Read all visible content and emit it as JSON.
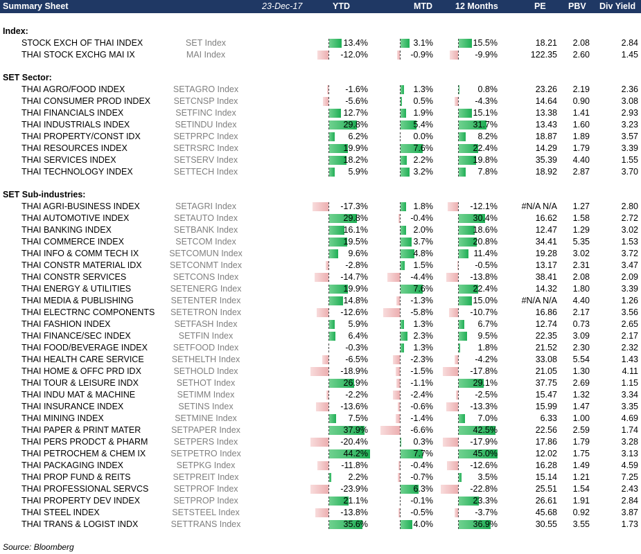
{
  "header": {
    "title": "Summary Sheet",
    "date": "23-Dec-17",
    "col_ytd": "YTD",
    "col_mtd": "MTD",
    "col_12m": "12 Months",
    "col_pe": "PE",
    "col_pbv": "PBV",
    "col_div": "Div Yield"
  },
  "colors": {
    "header_bg": "#1f3864",
    "positive_bar": "#2fb862",
    "negative_bar": "#ecaeb0"
  },
  "sections": [
    {
      "title": "Index:",
      "rows": [
        {
          "name": "STOCK EXCH OF THAI INDEX",
          "ticker": "SET Index",
          "ytd": "13.4%",
          "mtd": "3.1%",
          "m12": "15.5%",
          "pe": "18.21",
          "pbv": "2.08",
          "div": "2.84"
        },
        {
          "name": "THAI STOCK EXCHG MAI IX",
          "ticker": "MAI Index",
          "ytd": "-12.0%",
          "mtd": "-0.9%",
          "m12": "-9.9%",
          "pe": "122.35",
          "pbv": "2.60",
          "div": "1.45"
        }
      ]
    },
    {
      "title": "SET Sector:",
      "rows": [
        {
          "name": "THAI AGRO/FOOD INDEX",
          "ticker": "SETAGRO Index",
          "ytd": "-1.6%",
          "mtd": "1.3%",
          "m12": "0.8%",
          "pe": "23.26",
          "pbv": "2.19",
          "div": "2.36"
        },
        {
          "name": "THAI CONSUMER PROD INDEX",
          "ticker": "SETCNSP Index",
          "ytd": "-5.6%",
          "mtd": "0.5%",
          "m12": "-4.3%",
          "pe": "14.64",
          "pbv": "0.90",
          "div": "3.08"
        },
        {
          "name": "THAI FINANCIALS INDEX",
          "ticker": "SETFINC Index",
          "ytd": "12.7%",
          "mtd": "1.9%",
          "m12": "15.1%",
          "pe": "13.38",
          "pbv": "1.41",
          "div": "2.93"
        },
        {
          "name": "THAI INDUSTRIALS INDEX",
          "ticker": "SETINDU Index",
          "ytd": "29.8%",
          "mtd": "5.4%",
          "m12": "31.7%",
          "pe": "13.43",
          "pbv": "1.60",
          "div": "3.23"
        },
        {
          "name": "THAI PROPERTY/CONST IDX",
          "ticker": "SETPRPC Index",
          "ytd": "6.2%",
          "mtd": "0.0%",
          "m12": "8.2%",
          "pe": "18.87",
          "pbv": "1.89",
          "div": "3.57"
        },
        {
          "name": "THAI RESOURCES INDEX",
          "ticker": "SETRSRC Index",
          "ytd": "19.9%",
          "mtd": "7.6%",
          "m12": "22.4%",
          "pe": "14.29",
          "pbv": "1.79",
          "div": "3.39"
        },
        {
          "name": "THAI SERVICES INDEX",
          "ticker": "SETSERV Index",
          "ytd": "18.2%",
          "mtd": "2.2%",
          "m12": "19.8%",
          "pe": "35.39",
          "pbv": "4.40",
          "div": "1.55"
        },
        {
          "name": "THAI TECHNOLOGY INDEX",
          "ticker": "SETTECH Index",
          "ytd": "5.9%",
          "mtd": "3.2%",
          "m12": "7.8%",
          "pe": "18.92",
          "pbv": "2.87",
          "div": "3.70"
        }
      ]
    },
    {
      "title": "SET Sub-industries:",
      "rows": [
        {
          "name": "THAI AGRI-BUSINESS INDEX",
          "ticker": "SETAGRI Index",
          "ytd": "-17.3%",
          "mtd": "1.8%",
          "m12": "-12.1%",
          "pe": "#N/A N/A",
          "pbv": "1.27",
          "div": "2.80"
        },
        {
          "name": "THAI AUTOMOTIVE INDEX",
          "ticker": "SETAUTO Index",
          "ytd": "29.8%",
          "mtd": "-0.4%",
          "m12": "30.4%",
          "pe": "16.62",
          "pbv": "1.58",
          "div": "2.72"
        },
        {
          "name": "THAI BANKING INDEX",
          "ticker": "SETBANK Index",
          "ytd": "16.1%",
          "mtd": "2.0%",
          "m12": "18.6%",
          "pe": "12.47",
          "pbv": "1.29",
          "div": "3.02"
        },
        {
          "name": "THAI COMMERCE INDEX",
          "ticker": "SETCOM Index",
          "ytd": "19.5%",
          "mtd": "3.7%",
          "m12": "20.8%",
          "pe": "34.41",
          "pbv": "5.35",
          "div": "1.53"
        },
        {
          "name": "THAI INFO & COMM TECH IX",
          "ticker": "SETCOMUN Index",
          "ytd": "9.6%",
          "mtd": "4.8%",
          "m12": "11.4%",
          "pe": "19.28",
          "pbv": "3.02",
          "div": "3.72"
        },
        {
          "name": "THAI CONSTR MATERIAL IDX",
          "ticker": "SETCONMT Index",
          "ytd": "-2.8%",
          "mtd": "1.5%",
          "m12": "-0.5%",
          "pe": "13.17",
          "pbv": "2.31",
          "div": "3.47"
        },
        {
          "name": "THAI CONSTR SERVICES",
          "ticker": "SETCONS Index",
          "ytd": "-14.7%",
          "mtd": "-4.4%",
          "m12": "-13.8%",
          "pe": "38.41",
          "pbv": "2.08",
          "div": "2.09"
        },
        {
          "name": "THAI ENERGY & UTILITIES",
          "ticker": "SETENERG Index",
          "ytd": "19.9%",
          "mtd": "7.6%",
          "m12": "22.4%",
          "pe": "14.32",
          "pbv": "1.80",
          "div": "3.39"
        },
        {
          "name": "THAI MEDIA & PUBLISHING",
          "ticker": "SETENTER Index",
          "ytd": "14.8%",
          "mtd": "-1.3%",
          "m12": "15.0%",
          "pe": "#N/A N/A",
          "pbv": "4.40",
          "div": "1.26"
        },
        {
          "name": "THAI ELECTRNC COMPONENTS",
          "ticker": "SETETRON Index",
          "ytd": "-12.6%",
          "mtd": "-5.8%",
          "m12": "-10.7%",
          "pe": "16.86",
          "pbv": "2.17",
          "div": "3.56"
        },
        {
          "name": "THAI FASHION INDEX",
          "ticker": "SETFASH Index",
          "ytd": "5.9%",
          "mtd": "1.3%",
          "m12": "6.7%",
          "pe": "12.74",
          "pbv": "0.73",
          "div": "2.65"
        },
        {
          "name": "THAI FINANCE/SEC INDEX",
          "ticker": "SETFIN Index",
          "ytd": "6.4%",
          "mtd": "2.3%",
          "m12": "9.5%",
          "pe": "22.35",
          "pbv": "3.09",
          "div": "2.17"
        },
        {
          "name": "THAI FOOD/BEVERAGE INDEX",
          "ticker": "SETFOOD Index",
          "ytd": "-0.3%",
          "mtd": "1.3%",
          "m12": "1.8%",
          "pe": "21.52",
          "pbv": "2.30",
          "div": "2.32"
        },
        {
          "name": "THAI HEALTH CARE SERVICE",
          "ticker": "SETHELTH Index",
          "ytd": "-6.5%",
          "mtd": "-2.3%",
          "m12": "-4.2%",
          "pe": "33.08",
          "pbv": "5.54",
          "div": "1.43"
        },
        {
          "name": "THAI HOME & OFFC PRD IDX",
          "ticker": "SETHOLD Index",
          "ytd": "-18.9%",
          "mtd": "-1.5%",
          "m12": "-17.8%",
          "pe": "21.05",
          "pbv": "1.30",
          "div": "4.11"
        },
        {
          "name": "THAI TOUR & LEISURE INDX",
          "ticker": "SETHOT Index",
          "ytd": "26.9%",
          "mtd": "-1.1%",
          "m12": "29.1%",
          "pe": "37.75",
          "pbv": "2.69",
          "div": "1.15"
        },
        {
          "name": "THAI INDU MAT & MACHINE",
          "ticker": "SETIMM Index",
          "ytd": "-2.2%",
          "mtd": "-2.4%",
          "m12": "-2.5%",
          "pe": "15.47",
          "pbv": "1.32",
          "div": "3.34"
        },
        {
          "name": "THAI INSURANCE INDEX",
          "ticker": "SETINS Index",
          "ytd": "-13.6%",
          "mtd": "-0.6%",
          "m12": "-13.3%",
          "pe": "15.99",
          "pbv": "1.47",
          "div": "3.35"
        },
        {
          "name": "THAI MINING INDEX",
          "ticker": "SETMINE Index",
          "ytd": "7.5%",
          "mtd": "-1.4%",
          "m12": "7.0%",
          "pe": "6.33",
          "pbv": "1.00",
          "div": "4.69"
        },
        {
          "name": "THAI PAPER & PRINT MATER",
          "ticker": "SETPAPER Index",
          "ytd": "37.9%",
          "mtd": "-6.6%",
          "m12": "42.5%",
          "pe": "22.56",
          "pbv": "2.59",
          "div": "1.74"
        },
        {
          "name": "THAI PERS PRODCT & PHARM",
          "ticker": "SETPERS Index",
          "ytd": "-20.4%",
          "mtd": "0.3%",
          "m12": "-17.9%",
          "pe": "17.86",
          "pbv": "1.79",
          "div": "3.28"
        },
        {
          "name": "THAI PETROCHEM & CHEM IX",
          "ticker": "SETPETRO Index",
          "ytd": "44.2%",
          "mtd": "7.7%",
          "m12": "45.0%",
          "pe": "12.02",
          "pbv": "1.75",
          "div": "3.13"
        },
        {
          "name": "THAI PACKAGING INDEX",
          "ticker": "SETPKG Index",
          "ytd": "-11.8%",
          "mtd": "-0.4%",
          "m12": "-12.6%",
          "pe": "16.28",
          "pbv": "1.49",
          "div": "4.59"
        },
        {
          "name": "THAI PROP FUND & REITS",
          "ticker": "SETPREIT Index",
          "ytd": "2.2%",
          "mtd": "-0.7%",
          "m12": "3.5%",
          "pe": "15.14",
          "pbv": "1.21",
          "div": "7.25"
        },
        {
          "name": "THAI PROFESSIONAL SERVCS",
          "ticker": "SETPROF Index",
          "ytd": "-23.9%",
          "mtd": "6.3%",
          "m12": "-22.8%",
          "pe": "25.51",
          "pbv": "1.54",
          "div": "2.43"
        },
        {
          "name": "THAI PROPERTY DEV INDEX",
          "ticker": "SETPROP Index",
          "ytd": "21.1%",
          "mtd": "-0.1%",
          "m12": "23.3%",
          "pe": "26.61",
          "pbv": "1.91",
          "div": "2.84"
        },
        {
          "name": "THAI STEEL INDEX",
          "ticker": "SETSTEEL Index",
          "ytd": "-13.8%",
          "mtd": "-0.5%",
          "m12": "-3.7%",
          "pe": "45.68",
          "pbv": "0.92",
          "div": "3.87"
        },
        {
          "name": "THAI TRANS & LOGIST INDX",
          "ticker": "SETTRANS Index",
          "ytd": "35.6%",
          "mtd": "4.0%",
          "m12": "36.9%",
          "pe": "30.55",
          "pbv": "3.55",
          "div": "1.73"
        }
      ]
    }
  ],
  "source": "Source: Bloomberg"
}
